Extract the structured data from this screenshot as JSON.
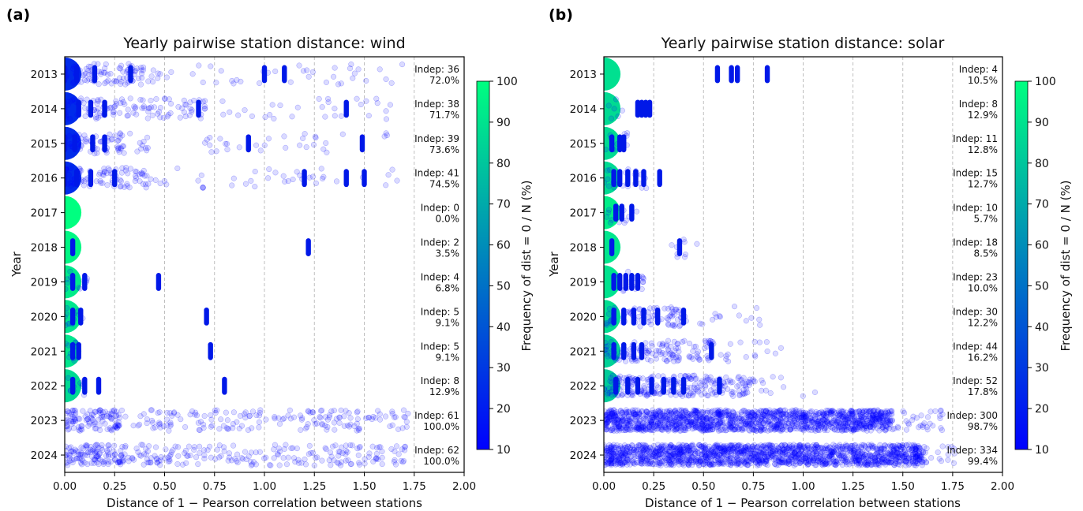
{
  "panels": [
    {
      "label": "(a)",
      "title": "Yearly pairwise station distance: wind",
      "xlabel": "Distance of 1 − Pearson correlation between stations",
      "ylabel": "Year",
      "colorbar_label": "Frequency of dist = 0 / N (%)"
    },
    {
      "label": "(b)",
      "title": "Yearly pairwise station distance: solar",
      "xlabel": "Distance of 1 − Pearson correlation between stations",
      "ylabel": "Year",
      "colorbar_label": "Frequency of dist = 0 / N (%)"
    }
  ],
  "chart_data": [
    {
      "type": "scatter",
      "title": "Yearly pairwise station distance: wind",
      "xlabel": "Distance of 1 − Pearson correlation between stations",
      "ylabel": "Year",
      "xlim": [
        0.0,
        2.0
      ],
      "xticks": [
        "0.00",
        "0.25",
        "0.50",
        "0.75",
        "1.00",
        "1.25",
        "1.50",
        "1.75",
        "2.00"
      ],
      "grid": "vertical dashed",
      "colorbar": {
        "label": "Frequency of dist = 0 / N (%)",
        "range": [
          10,
          100
        ],
        "ticks": [
          "10",
          "20",
          "30",
          "40",
          "50",
          "60",
          "70",
          "80",
          "90",
          "100"
        ],
        "colormap": "winter"
      },
      "series": [
        {
          "year": "2013",
          "indep": "Indep: 36",
          "pct": "72.0%",
          "zero_freq": 25,
          "ranges": [
            [
              0.0,
              0.48,
              1.0
            ],
            [
              0.48,
              1.72,
              0.15
            ]
          ],
          "clusters": [
            0.0,
            0.06,
            0.15,
            0.33,
            1.0,
            1.1
          ]
        },
        {
          "year": "2014",
          "indep": "Indep: 38",
          "pct": "71.7%",
          "zero_freq": 25,
          "ranges": [
            [
              0.0,
              0.25,
              1.0
            ],
            [
              0.25,
              0.72,
              0.7
            ],
            [
              0.72,
              1.72,
              0.15
            ]
          ],
          "clusters": [
            0.0,
            0.07,
            0.13,
            0.2,
            0.67,
            1.41
          ]
        },
        {
          "year": "2015",
          "indep": "Indep: 39",
          "pct": "73.6%",
          "zero_freq": 25,
          "ranges": [
            [
              0.0,
              0.3,
              1.0
            ],
            [
              0.3,
              0.42,
              0.4
            ],
            [
              0.7,
              1.72,
              0.15
            ]
          ],
          "clusters": [
            0.0,
            0.05,
            0.14,
            0.2,
            0.92,
            1.49
          ]
        },
        {
          "year": "2016",
          "indep": "Indep: 41",
          "pct": "74.5%",
          "zero_freq": 25,
          "ranges": [
            [
              0.0,
              0.42,
              1.0
            ],
            [
              0.42,
              1.72,
              0.15
            ]
          ],
          "clusters": [
            0.0,
            0.06,
            0.13,
            0.25,
            1.2,
            1.41,
            1.5
          ]
        },
        {
          "year": "2017",
          "indep": "Indep: 0",
          "pct": "0.0%",
          "zero_freq": 100,
          "ranges": [],
          "clusters": []
        },
        {
          "year": "2018",
          "indep": "Indep: 2",
          "pct": "3.5%",
          "zero_freq": 97,
          "ranges": [],
          "clusters": [
            0.04,
            1.22
          ]
        },
        {
          "year": "2019",
          "indep": "Indep: 4",
          "pct": "6.8%",
          "zero_freq": 93,
          "ranges": [
            [
              0.0,
              0.12,
              0.5
            ]
          ],
          "clusters": [
            0.04,
            0.1,
            0.47
          ]
        },
        {
          "year": "2020",
          "indep": "Indep: 5",
          "pct": "9.1%",
          "zero_freq": 91,
          "ranges": [
            [
              0.0,
              0.1,
              0.6
            ]
          ],
          "clusters": [
            0.04,
            0.08,
            0.71
          ]
        },
        {
          "year": "2021",
          "indep": "Indep: 5",
          "pct": "9.1%",
          "zero_freq": 91,
          "ranges": [
            [
              0.0,
              0.08,
              0.6
            ]
          ],
          "clusters": [
            0.04,
            0.07,
            0.73
          ]
        },
        {
          "year": "2022",
          "indep": "Indep: 8",
          "pct": "12.9%",
          "zero_freq": 87,
          "ranges": [
            [
              0.0,
              0.1,
              0.5
            ]
          ],
          "clusters": [
            0.04,
            0.1,
            0.17,
            0.8
          ]
        },
        {
          "year": "2023",
          "indep": "Indep: 61",
          "pct": "100.0%",
          "zero_freq": 0,
          "ranges": [
            [
              0.0,
              0.28,
              2.0
            ],
            [
              0.28,
              1.72,
              0.6
            ]
          ],
          "clusters": []
        },
        {
          "year": "2024",
          "indep": "Indep: 62",
          "pct": "100.0%",
          "zero_freq": 0,
          "ranges": [
            [
              0.0,
              0.3,
              2.0
            ],
            [
              0.3,
              1.72,
              0.7
            ]
          ],
          "clusters": []
        }
      ]
    },
    {
      "type": "scatter",
      "title": "Yearly pairwise station distance: solar",
      "xlabel": "Distance of 1 − Pearson correlation between stations",
      "ylabel": "Year",
      "xlim": [
        0.0,
        2.0
      ],
      "xticks": [
        "0.00",
        "0.25",
        "0.50",
        "0.75",
        "1.00",
        "1.25",
        "1.50",
        "1.75",
        "2.00"
      ],
      "grid": "vertical dashed",
      "colorbar": {
        "label": "Frequency of dist = 0 / N (%)",
        "range": [
          10,
          100
        ],
        "ticks": [
          "10",
          "20",
          "30",
          "40",
          "50",
          "60",
          "70",
          "80",
          "90",
          "100"
        ],
        "colormap": "winter"
      },
      "series": [
        {
          "year": "2013",
          "indep": "Indep: 4",
          "pct": "10.5%",
          "zero_freq": 89,
          "ranges": [],
          "clusters": [
            0.57,
            0.64,
            0.67,
            0.82
          ]
        },
        {
          "year": "2014",
          "indep": "Indep: 8",
          "pct": "12.9%",
          "zero_freq": 87,
          "ranges": [
            [
              0.0,
              0.1,
              0.3
            ]
          ],
          "clusters": [
            0.17,
            0.19,
            0.21,
            0.23
          ]
        },
        {
          "year": "2015",
          "indep": "Indep: 11",
          "pct": "12.8%",
          "zero_freq": 87,
          "ranges": [
            [
              0.0,
              0.12,
              0.4
            ]
          ],
          "clusters": [
            0.04,
            0.08,
            0.1
          ]
        },
        {
          "year": "2016",
          "indep": "Indep: 15",
          "pct": "12.7%",
          "zero_freq": 87,
          "ranges": [
            [
              0.0,
              0.22,
              0.5
            ]
          ],
          "clusters": [
            0.05,
            0.08,
            0.12,
            0.16,
            0.2,
            0.28
          ]
        },
        {
          "year": "2017",
          "indep": "Indep: 10",
          "pct": "5.7%",
          "zero_freq": 94,
          "ranges": [
            [
              0.0,
              0.2,
              0.3
            ]
          ],
          "clusters": [
            0.06,
            0.09,
            0.14
          ]
        },
        {
          "year": "2018",
          "indep": "Indep: 18",
          "pct": "8.5%",
          "zero_freq": 91,
          "ranges": [
            [
              0.33,
              0.48,
              0.3
            ]
          ],
          "clusters": [
            0.04,
            0.38
          ]
        },
        {
          "year": "2019",
          "indep": "Indep: 23",
          "pct": "10.0%",
          "zero_freq": 90,
          "ranges": [
            [
              0.0,
              0.2,
              0.4
            ]
          ],
          "clusters": [
            0.05,
            0.08,
            0.11,
            0.14,
            0.17
          ]
        },
        {
          "year": "2020",
          "indep": "Indep: 30",
          "pct": "12.2%",
          "zero_freq": 88,
          "ranges": [
            [
              0.0,
              0.4,
              1.0
            ],
            [
              0.4,
              0.8,
              0.2
            ]
          ],
          "clusters": [
            0.05,
            0.1,
            0.15,
            0.2,
            0.27,
            0.4
          ]
        },
        {
          "year": "2021",
          "indep": "Indep: 44",
          "pct": "16.2%",
          "zero_freq": 84,
          "ranges": [
            [
              0.0,
              0.55,
              1.2
            ],
            [
              0.55,
              0.95,
              0.2
            ]
          ],
          "clusters": [
            0.05,
            0.1,
            0.15,
            0.19,
            0.54
          ]
        },
        {
          "year": "2022",
          "indep": "Indep: 52",
          "pct": "17.8%",
          "zero_freq": 82,
          "ranges": [
            [
              0.0,
              0.75,
              1.6
            ],
            [
              0.75,
              1.06,
              0.2
            ]
          ],
          "clusters": [
            0.06,
            0.12,
            0.17,
            0.24,
            0.3,
            0.35,
            0.4,
            0.58
          ]
        },
        {
          "year": "2023",
          "indep": "Indep: 300",
          "pct": "98.7%",
          "zero_freq": 1,
          "ranges": [
            [
              0.0,
              1.45,
              5.0
            ],
            [
              1.45,
              1.72,
              0.6
            ]
          ],
          "clusters": []
        },
        {
          "year": "2024",
          "indep": "Indep: 334",
          "pct": "99.4%",
          "zero_freq": 1,
          "ranges": [
            [
              0.0,
              1.6,
              5.0
            ],
            [
              1.6,
              1.77,
              0.6
            ]
          ],
          "clusters": []
        }
      ]
    }
  ]
}
